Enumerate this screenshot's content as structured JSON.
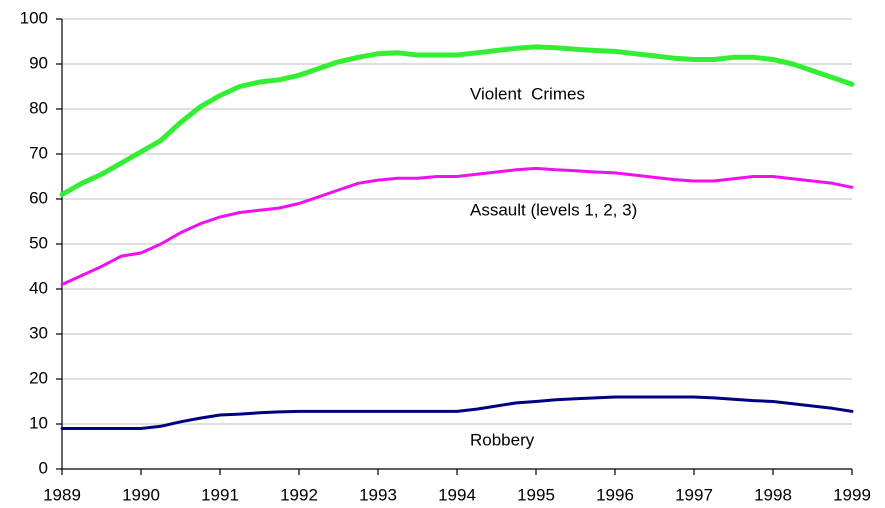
{
  "chart_data": {
    "type": "line",
    "annotations": [
      "Violent  Crimes",
      "Assault (levels 1, 2, 3)",
      "Robbery"
    ],
    "x": [
      1989,
      1989.25,
      1989.5,
      1989.75,
      1990,
      1990.25,
      1990.5,
      1990.75,
      1991,
      1991.25,
      1991.5,
      1991.75,
      1992,
      1992.25,
      1992.5,
      1992.75,
      1993,
      1993.25,
      1993.5,
      1993.75,
      1994,
      1994.25,
      1994.5,
      1994.75,
      1995,
      1995.25,
      1995.5,
      1995.75,
      1996,
      1996.25,
      1996.5,
      1996.75,
      1997,
      1997.25,
      1997.5,
      1997.75,
      1998,
      1998.25,
      1998.5,
      1998.75,
      1999
    ],
    "series": [
      {
        "name": "Violent  Crimes",
        "color": "#33ee33",
        "values": [
          61,
          63.5,
          65.5,
          68,
          70.5,
          73,
          77,
          80.5,
          83,
          85,
          86,
          86.5,
          87.5,
          89,
          90.5,
          91.5,
          92.3,
          92.5,
          92,
          92,
          92,
          92.5,
          93,
          93.5,
          93.8,
          93.6,
          93.3,
          93,
          92.8,
          92.3,
          91.8,
          91.3,
          91,
          91,
          91.5,
          91.5,
          91,
          90,
          88.5,
          87,
          85.5
        ]
      },
      {
        "name": "Assault (levels 1, 2, 3)",
        "color": "#ee11ee",
        "values": [
          41,
          43,
          45,
          47.3,
          48,
          50,
          52.5,
          54.5,
          56,
          57,
          57.5,
          58,
          59,
          60.5,
          62,
          63.5,
          64.2,
          64.6,
          64.6,
          65,
          65,
          65.5,
          66,
          66.5,
          66.8,
          66.5,
          66.3,
          66,
          65.8,
          65.3,
          64.8,
          64.3,
          64,
          64,
          64.5,
          65,
          65,
          64.5,
          64,
          63.5,
          62.6
        ]
      },
      {
        "name": "Robbery",
        "color": "#000080",
        "values": [
          9,
          9,
          9,
          9,
          9,
          9.5,
          10.5,
          11.3,
          12,
          12.2,
          12.5,
          12.7,
          12.8,
          12.8,
          12.8,
          12.8,
          12.8,
          12.8,
          12.8,
          12.8,
          12.8,
          13.3,
          14,
          14.7,
          15,
          15.4,
          15.6,
          15.8,
          16,
          16,
          16,
          16,
          16,
          15.8,
          15.5,
          15.2,
          15,
          14.5,
          14,
          13.5,
          12.8
        ]
      }
    ],
    "xlim": [
      1989,
      1999
    ],
    "xticks": [
      1989,
      1990,
      1991,
      1992,
      1993,
      1994,
      1995,
      1996,
      1997,
      1998,
      1999
    ],
    "ylim": [
      0,
      100
    ],
    "yticks": [
      0,
      10,
      20,
      30,
      40,
      50,
      60,
      70,
      80,
      90,
      100
    ],
    "grid": true
  }
}
